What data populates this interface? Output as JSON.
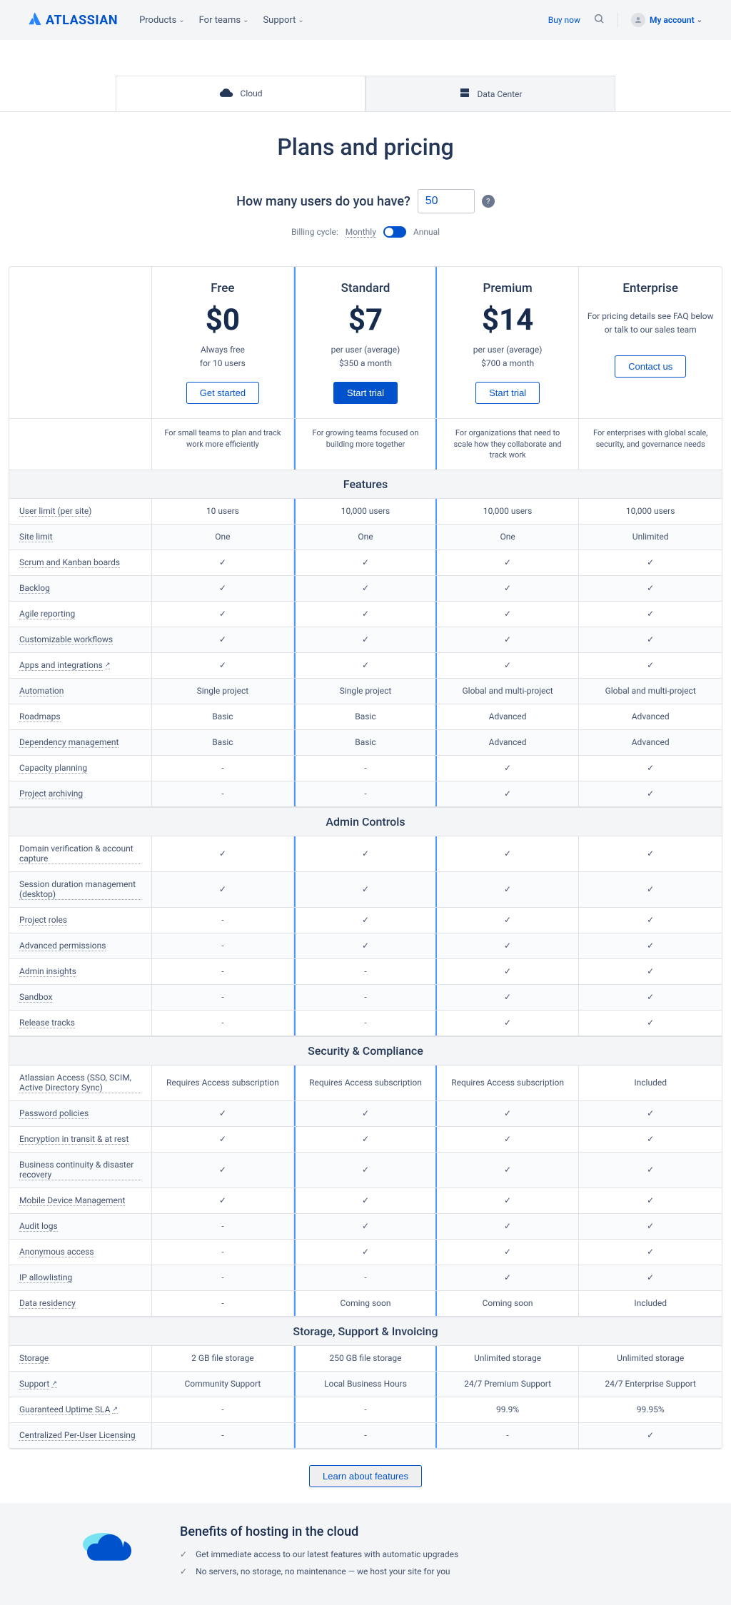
{
  "header": {
    "logo": "ATLASSIAN",
    "nav": [
      "Products",
      "For teams",
      "Support"
    ],
    "buy_now": "Buy now",
    "account": "My account"
  },
  "tabs": {
    "cloud": "Cloud",
    "datacenter": "Data Center"
  },
  "title": "Plans and pricing",
  "users": {
    "label": "How many users do you have?",
    "value": "50"
  },
  "billing": {
    "label": "Billing cycle:",
    "monthly": "Monthly",
    "annual": "Annual"
  },
  "plans": {
    "free": {
      "name": "Free",
      "price": "$0",
      "sub1": "Always free",
      "sub2": "for 10 users",
      "btn": "Get started",
      "desc": "For small teams to plan and track work more efficiently"
    },
    "standard": {
      "name": "Standard",
      "price": "$7",
      "sub1": "per user (average)",
      "sub2": "$350 a month",
      "btn": "Start trial",
      "desc": "For growing teams focused on building more together"
    },
    "premium": {
      "name": "Premium",
      "price": "$14",
      "sub1": "per user (average)",
      "sub2": "$700 a month",
      "btn": "Start trial",
      "desc": "For organizations that need to scale how they collaborate and track work"
    },
    "enterprise": {
      "name": "Enterprise",
      "sub1": "For pricing details see FAQ below or talk to our sales team",
      "btn": "Contact us",
      "desc": "For enterprises with global scale, security, and governance needs"
    }
  },
  "sections": {
    "features": "Features",
    "admin": "Admin Controls",
    "security": "Security & Compliance",
    "storage": "Storage, Support & Invoicing"
  },
  "features": [
    {
      "label": "User limit (per site)",
      "vals": [
        "10 users",
        "10,000 users",
        "10,000 users",
        "10,000 users"
      ]
    },
    {
      "label": "Site limit",
      "vals": [
        "One",
        "One",
        "One",
        "Unlimited"
      ]
    },
    {
      "label": "Scrum and Kanban boards",
      "vals": [
        "✓",
        "✓",
        "✓",
        "✓"
      ]
    },
    {
      "label": "Backlog",
      "vals": [
        "✓",
        "✓",
        "✓",
        "✓"
      ]
    },
    {
      "label": "Agile reporting",
      "vals": [
        "✓",
        "✓",
        "✓",
        "✓"
      ]
    },
    {
      "label": "Customizable workflows",
      "vals": [
        "✓",
        "✓",
        "✓",
        "✓"
      ]
    },
    {
      "label": "Apps and integrations",
      "ext": true,
      "vals": [
        "✓",
        "✓",
        "✓",
        "✓"
      ]
    },
    {
      "label": "Automation",
      "vals": [
        "Single project",
        "Single project",
        "Global and multi-project",
        "Global and multi-project"
      ]
    },
    {
      "label": "Roadmaps",
      "vals": [
        "Basic",
        "Basic",
        "Advanced",
        "Advanced"
      ]
    },
    {
      "label": "Dependency management",
      "vals": [
        "Basic",
        "Basic",
        "Advanced",
        "Advanced"
      ]
    },
    {
      "label": "Capacity planning",
      "vals": [
        "-",
        "-",
        "✓",
        "✓"
      ]
    },
    {
      "label": "Project archiving",
      "vals": [
        "-",
        "-",
        "✓",
        "✓"
      ]
    }
  ],
  "admin": [
    {
      "label": "Domain verification & account capture",
      "vals": [
        "✓",
        "✓",
        "✓",
        "✓"
      ]
    },
    {
      "label": "Session duration management (desktop)",
      "vals": [
        "✓",
        "✓",
        "✓",
        "✓"
      ]
    },
    {
      "label": "Project roles",
      "vals": [
        "-",
        "✓",
        "✓",
        "✓"
      ]
    },
    {
      "label": "Advanced permissions",
      "vals": [
        "-",
        "✓",
        "✓",
        "✓"
      ]
    },
    {
      "label": "Admin insights",
      "vals": [
        "-",
        "-",
        "✓",
        "✓"
      ]
    },
    {
      "label": "Sandbox",
      "vals": [
        "-",
        "-",
        "✓",
        "✓"
      ]
    },
    {
      "label": "Release tracks",
      "vals": [
        "-",
        "-",
        "✓",
        "✓"
      ]
    }
  ],
  "security": [
    {
      "label": "Atlassian Access (SSO, SCIM, Active Directory Sync)",
      "vals": [
        "Requires Access subscription",
        "Requires Access subscription",
        "Requires Access subscription",
        "Included"
      ]
    },
    {
      "label": "Password policies",
      "vals": [
        "✓",
        "✓",
        "✓",
        "✓"
      ]
    },
    {
      "label": "Encryption in transit & at rest",
      "vals": [
        "✓",
        "✓",
        "✓",
        "✓"
      ]
    },
    {
      "label": "Business continuity & disaster recovery",
      "vals": [
        "✓",
        "✓",
        "✓",
        "✓"
      ]
    },
    {
      "label": "Mobile Device Management",
      "vals": [
        "✓",
        "✓",
        "✓",
        "✓"
      ]
    },
    {
      "label": "Audit logs",
      "vals": [
        "-",
        "✓",
        "✓",
        "✓"
      ]
    },
    {
      "label": "Anonymous access",
      "vals": [
        "-",
        "✓",
        "✓",
        "✓"
      ]
    },
    {
      "label": "IP allowlisting",
      "vals": [
        "-",
        "-",
        "✓",
        "✓"
      ]
    },
    {
      "label": "Data residency",
      "vals": [
        "-",
        "Coming soon",
        "Coming soon",
        "Included"
      ]
    }
  ],
  "storage": [
    {
      "label": "Storage",
      "vals": [
        "2 GB file storage",
        "250 GB file storage",
        "Unlimited storage",
        "Unlimited storage"
      ]
    },
    {
      "label": "Support",
      "ext": true,
      "vals": [
        "Community Support",
        "Local Business Hours",
        "24/7 Premium Support",
        "24/7 Enterprise Support"
      ]
    },
    {
      "label": "Guaranteed Uptime SLA",
      "ext": true,
      "vals": [
        "-",
        "-",
        "99.9%",
        "99.95%"
      ]
    },
    {
      "label": "Centralized Per-User Licensing",
      "vals": [
        "-",
        "-",
        "-",
        "✓"
      ]
    }
  ],
  "learn_btn": "Learn about features",
  "benefits": {
    "title": "Benefits of hosting in the cloud",
    "items": [
      "Get immediate access to our latest features with automatic upgrades",
      "No servers, no storage, no maintenance — we host your site for you"
    ]
  }
}
